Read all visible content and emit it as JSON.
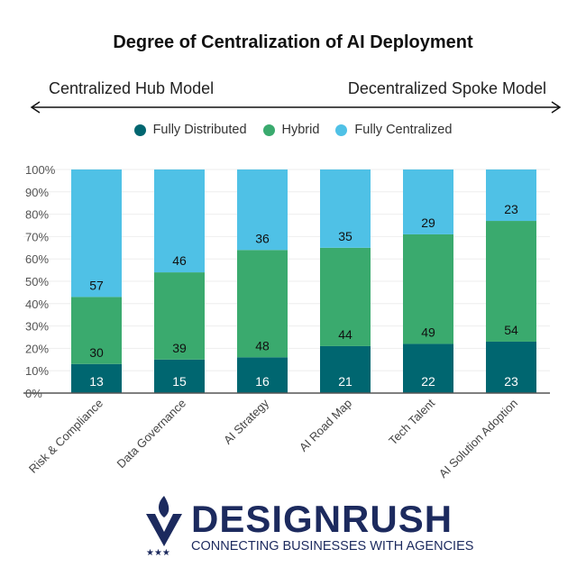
{
  "chart_data": {
    "type": "bar",
    "stacked": true,
    "title": "Degree of Centralization of AI Deployment",
    "annotation_left": "Centralized Hub Model",
    "annotation_right": "Decentralized Spoke Model",
    "categories": [
      "Risk & Compliance",
      "Data Governance",
      "AI Strategy",
      "AI Road Map",
      "Tech Talent",
      "AI Solution Adoption"
    ],
    "series": [
      {
        "name": "Fully Distributed",
        "color": "#006670",
        "label_color": "#ffffff",
        "values": [
          13,
          15,
          16,
          21,
          22,
          23
        ]
      },
      {
        "name": "Hybrid",
        "color": "#3aaa6e",
        "label_color": "#111111",
        "values": [
          30,
          39,
          48,
          44,
          49,
          54
        ]
      },
      {
        "name": "Fully Centralized",
        "color": "#4fc1e6",
        "label_color": "#111111",
        "values": [
          57,
          46,
          36,
          35,
          29,
          23
        ]
      }
    ],
    "yticks": [
      "0%",
      "10%",
      "20%",
      "30%",
      "40%",
      "50%",
      "60%",
      "70%",
      "80%",
      "90%",
      "100%"
    ],
    "ylim": [
      0,
      100
    ],
    "grid": true,
    "legend": "top"
  },
  "logo": {
    "brand": "DESIGNRUSH",
    "tagline": "CONNECTING BUSINESSES WITH AGENCIES"
  }
}
